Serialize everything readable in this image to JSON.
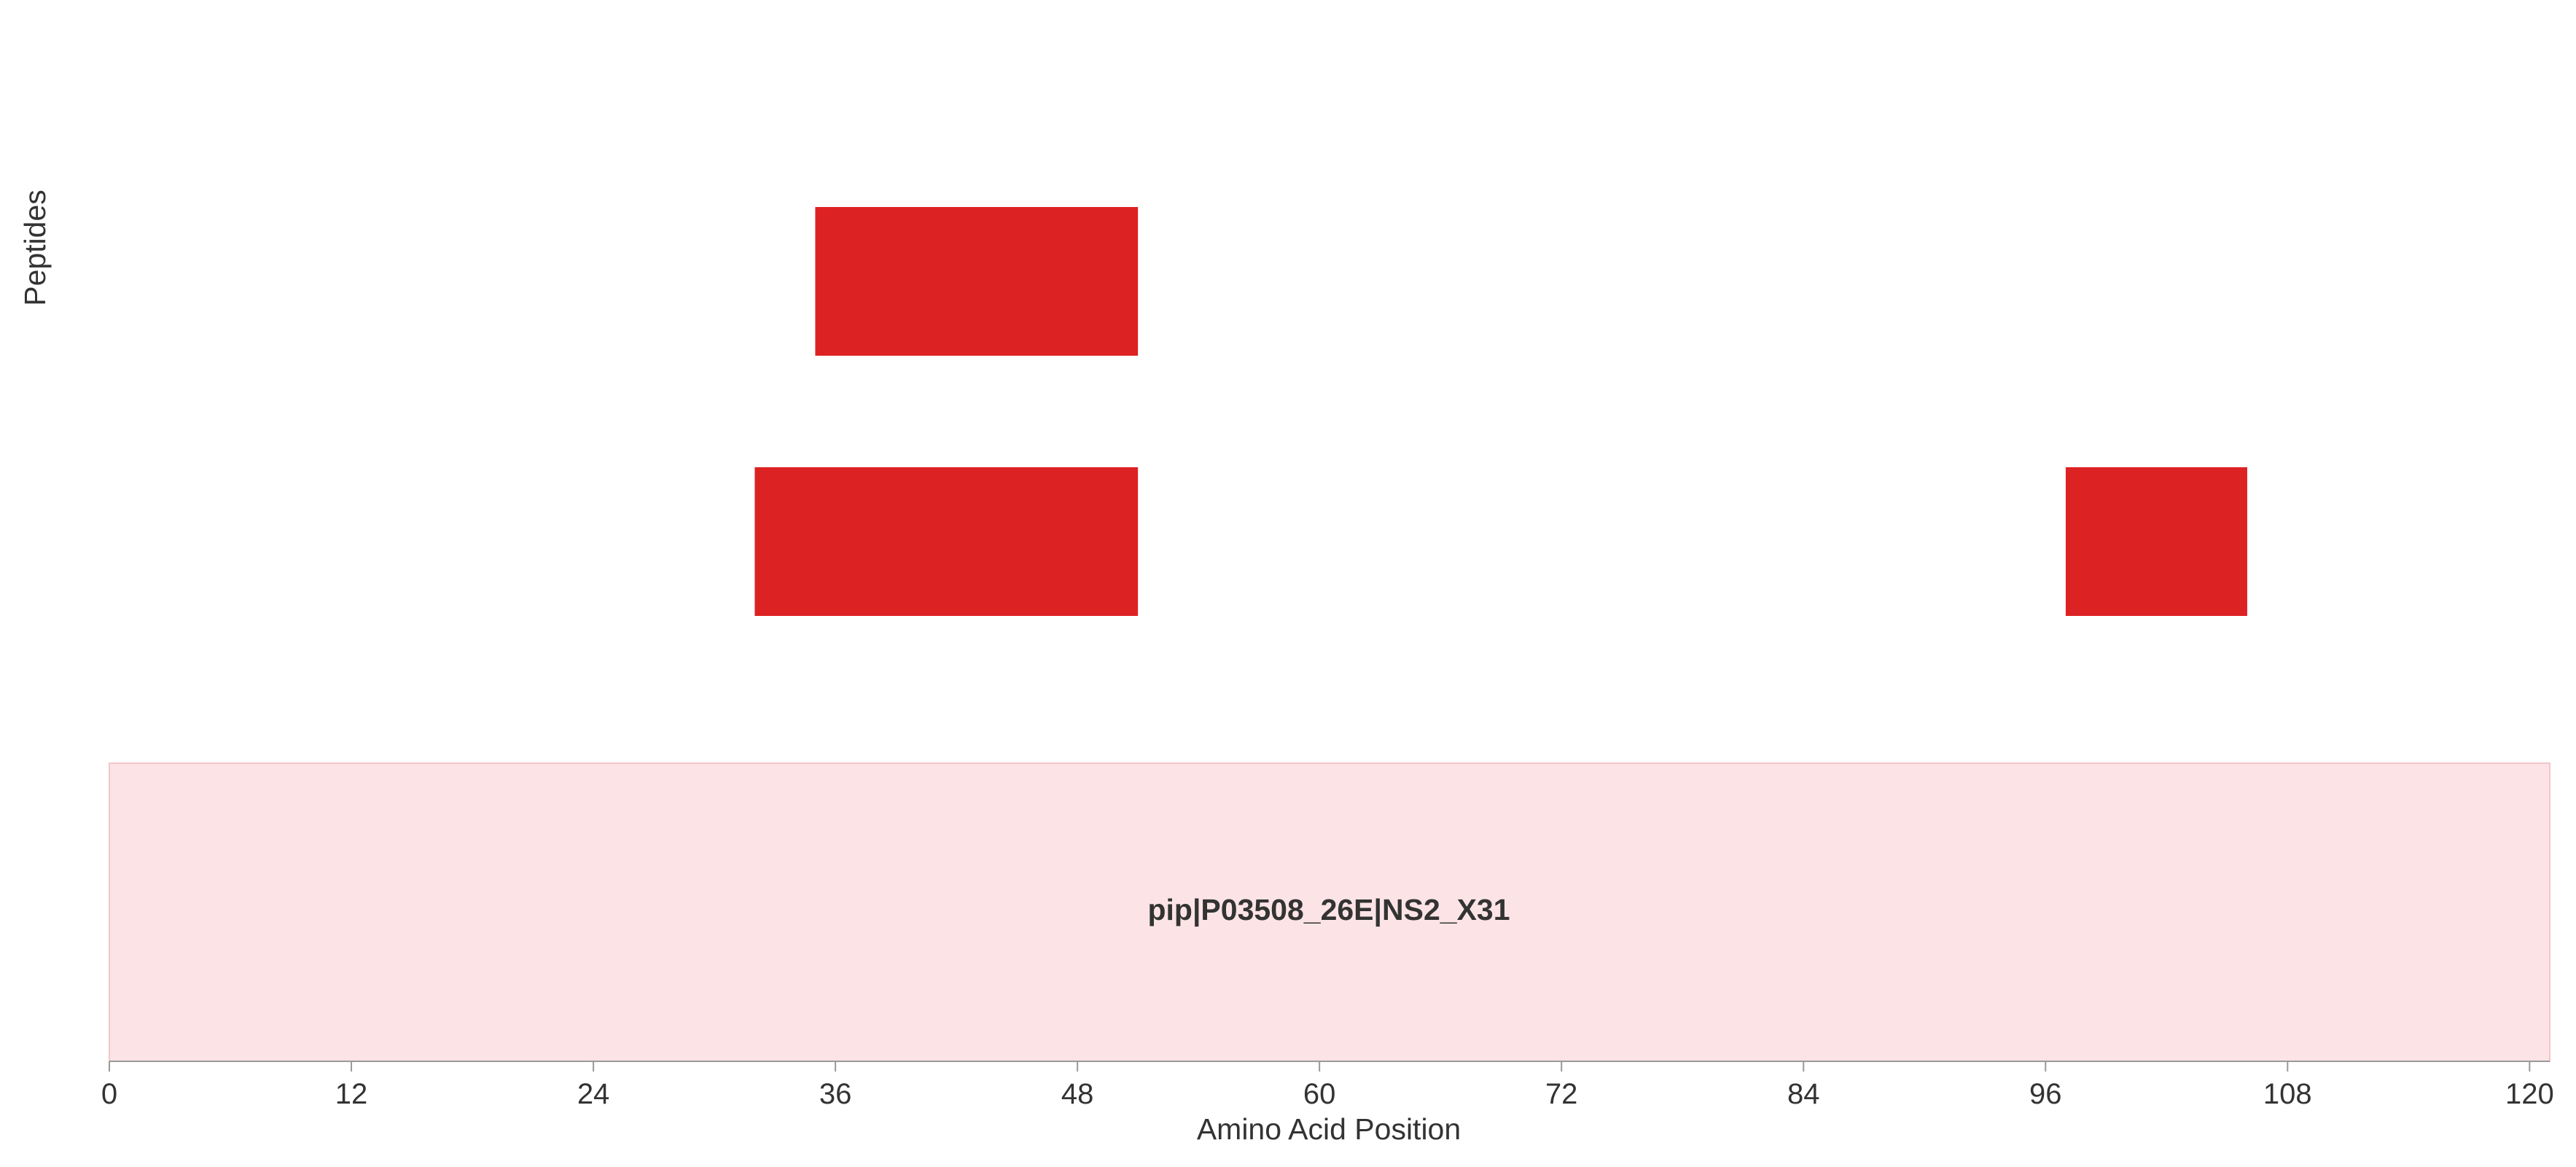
{
  "chart_data": {
    "type": "bar",
    "orientation": "horizontal",
    "xlabel": "Amino Acid Position",
    "ylabel": "Peptides",
    "xlim": [
      0,
      121
    ],
    "xticks": [
      0,
      12,
      24,
      36,
      48,
      60,
      72,
      84,
      96,
      108,
      120
    ],
    "grid": false,
    "protein": {
      "label": "pip|P03508_26E|NS2_X31",
      "start": 0,
      "end": 121,
      "color": "#fce4e6",
      "border_color": "#f3c6cb"
    },
    "peptide_color": "#dd2224",
    "peptide_rows": [
      {
        "peptides": [
          {
            "start": 35,
            "end": 51
          }
        ]
      },
      {
        "peptides": [
          {
            "start": 32,
            "end": 51
          },
          {
            "start": 97,
            "end": 106
          }
        ]
      }
    ]
  }
}
